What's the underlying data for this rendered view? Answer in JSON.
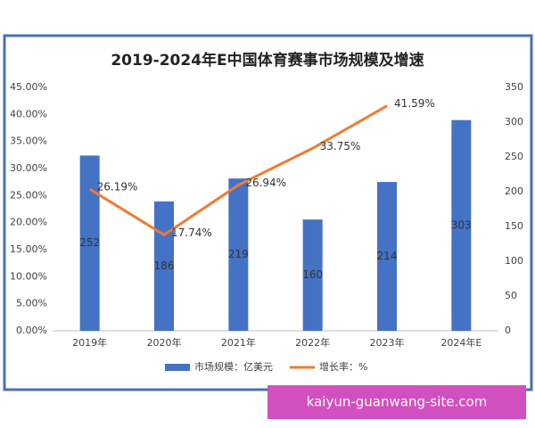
{
  "chart_data": {
    "type": "bar-line",
    "title": "2019-2024年E中国体育赛事市场规模及增速",
    "categories": [
      "2019年",
      "2020年",
      "2021年",
      "2022年",
      "2023年",
      "2024年E"
    ],
    "series": [
      {
        "name": "市场规模：亿美元",
        "type": "bar",
        "axis": "y2",
        "color": "#4472c4",
        "values": [
          252,
          186,
          219,
          160,
          214,
          303
        ]
      },
      {
        "name": "增长率：%",
        "type": "line",
        "color": "#ed7d31",
        "values": [
          26.19,
          17.74,
          26.94,
          33.75,
          41.59,
          null
        ],
        "value_labels": [
          "26.19%",
          "17.74%",
          "26.94%",
          "33.75%",
          "41.59%",
          null
        ]
      }
    ],
    "ylim": [
      0,
      45
    ],
    "yticks": [
      {
        "value": 0,
        "label": "0.00%"
      },
      {
        "value": 5,
        "label": "5.00%"
      },
      {
        "value": 10,
        "label": "10.00%"
      },
      {
        "value": 15,
        "label": "15.00%"
      },
      {
        "value": 20,
        "label": "20.00%"
      },
      {
        "value": 25,
        "label": "25.00%"
      },
      {
        "value": 30,
        "label": "30.00%"
      },
      {
        "value": 35,
        "label": "35.00%"
      },
      {
        "value": 40,
        "label": "40.00%"
      },
      {
        "value": 45,
        "label": "45.00%"
      }
    ],
    "y2lim": [
      0,
      350
    ],
    "y2ticks": [
      0,
      50,
      100,
      150,
      200,
      250,
      300,
      350
    ],
    "grid": false,
    "legend": "bottom"
  },
  "banner_text": "kaiyun-guanwang-site.com"
}
